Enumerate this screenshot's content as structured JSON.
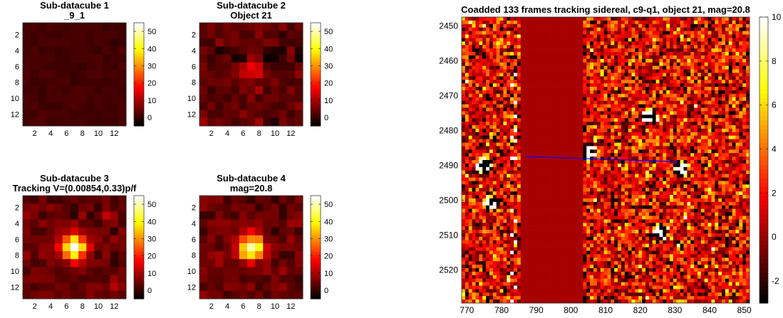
{
  "chart_data": [
    {
      "type": "heatmap",
      "title": [
        "Sub-datacube 1",
        "_9_1"
      ],
      "xticks": [
        2,
        4,
        6,
        8,
        10,
        12
      ],
      "yticks": [
        2,
        4,
        6,
        8,
        10,
        12
      ],
      "xlim": [
        0.5,
        13.5
      ],
      "ylim": [
        0.5,
        13.5
      ],
      "colorbar": {
        "ticks": [
          0,
          10,
          20,
          30,
          40,
          50
        ],
        "clim": [
          -5,
          55
        ]
      },
      "peak": null,
      "base": 1.0
    },
    {
      "type": "heatmap",
      "title": [
        "Sub-datacube 2",
        "Object 21"
      ],
      "xticks": [
        2,
        4,
        6,
        8,
        10,
        12
      ],
      "yticks": [
        2,
        4,
        6,
        8,
        10,
        12
      ],
      "xlim": [
        0.5,
        13.5
      ],
      "ylim": [
        0.5,
        13.5
      ],
      "colorbar": {
        "ticks": [
          0,
          10,
          20,
          30,
          40,
          50
        ],
        "clim": [
          -5,
          55
        ]
      },
      "peak": {
        "x": 7,
        "y": 6.5,
        "amp": 16,
        "sigma": 1.0
      },
      "base": 3.0
    },
    {
      "type": "heatmap",
      "title": [
        "Sub-datacube 3",
        "Tracking V=(0.00854,0.33)p/f"
      ],
      "xticks": [
        2,
        4,
        6,
        8,
        10,
        12
      ],
      "yticks": [
        2,
        4,
        6,
        8,
        10,
        12
      ],
      "xlim": [
        0.5,
        13.5
      ],
      "ylim": [
        0.5,
        13.5
      ],
      "colorbar": {
        "ticks": [
          0,
          10,
          20,
          30,
          40,
          50
        ],
        "clim": [
          -5,
          55
        ]
      },
      "peak": {
        "x": 7,
        "y": 7,
        "amp": 52,
        "sigma": 1.1
      },
      "base": 4.0
    },
    {
      "type": "heatmap",
      "title": [
        "Sub-datacube 4",
        "mag=20.8"
      ],
      "xticks": [
        2,
        4,
        6,
        8,
        10,
        12
      ],
      "yticks": [
        2,
        4,
        6,
        8,
        10,
        12
      ],
      "xlim": [
        0.5,
        13.5
      ],
      "ylim": [
        0.5,
        13.5
      ],
      "colorbar": {
        "ticks": [
          0,
          10,
          20,
          30,
          40,
          50
        ],
        "clim": [
          -5,
          55
        ]
      },
      "peak": {
        "x": 7,
        "y": 7,
        "amp": 50,
        "sigma": 1.1
      },
      "base": 4.0
    },
    {
      "type": "heatmap",
      "title": [
        "Coadded 133 frames tracking sidereal, c9-q1, object 21, mag=20.8"
      ],
      "xticks": [
        770,
        780,
        790,
        800,
        810,
        820,
        830,
        840,
        850
      ],
      "yticks": [
        2450,
        2460,
        2470,
        2480,
        2490,
        2500,
        2510,
        2520
      ],
      "xlim": [
        768.5,
        851.5
      ],
      "ylim": [
        2447.5,
        2529.5
      ],
      "colorbar": {
        "ticks": [
          -2,
          0,
          2,
          4,
          6,
          8,
          10
        ],
        "clim": [
          -3,
          10
        ]
      },
      "masked_columns": [
        786,
        803
      ],
      "masked_value": 0.2,
      "sources": [
        {
          "x": 823,
          "y": 2476,
          "amp": 14
        },
        {
          "x": 777,
          "y": 2501,
          "amp": 14
        },
        {
          "x": 775,
          "y": 2490,
          "amp": 9
        },
        {
          "x": 826,
          "y": 2509,
          "amp": 11
        },
        {
          "x": 832,
          "y": 2491,
          "amp": 8
        },
        {
          "x": 805,
          "y": 2486,
          "amp": 8
        }
      ],
      "track": {
        "x": [
          787,
          831
        ],
        "y": [
          2487.5,
          2489
        ],
        "color": "#0000ff"
      }
    }
  ]
}
